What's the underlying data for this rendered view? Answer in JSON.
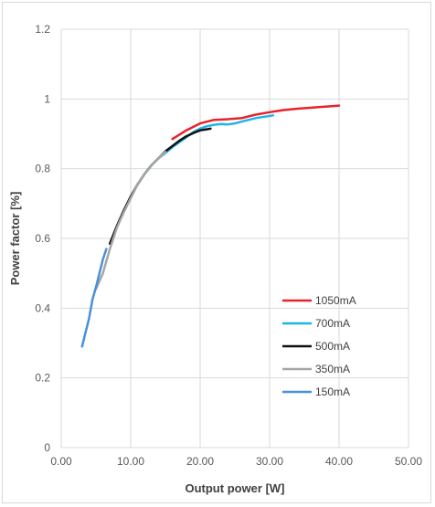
{
  "chart_data": {
    "type": "line",
    "title": "",
    "xlabel": "Output power [W]",
    "ylabel": "Power factor [%]",
    "xlim": [
      0,
      50
    ],
    "ylim": [
      0,
      1.2
    ],
    "x_ticks": [
      0,
      10,
      20,
      30,
      40,
      50
    ],
    "x_tick_labels": [
      "0.00",
      "10.00",
      "20.00",
      "30.00",
      "40.00",
      "50.00"
    ],
    "y_ticks": [
      0,
      0.2,
      0.4,
      0.6,
      0.8,
      1,
      1.2
    ],
    "y_tick_labels": [
      "0",
      "0.2",
      "0.4",
      "0.6",
      "0.8",
      "1",
      "1.2"
    ],
    "grid": true,
    "legend_position": "right-inside",
    "series": [
      {
        "name": "1050mA",
        "color": "#e8222a",
        "x": [
          16,
          18,
          20,
          22,
          24,
          26,
          28,
          30,
          32,
          34,
          36,
          38,
          40
        ],
        "y": [
          0.885,
          0.91,
          0.93,
          0.94,
          0.942,
          0.945,
          0.955,
          0.962,
          0.968,
          0.972,
          0.975,
          0.978,
          0.981
        ]
      },
      {
        "name": "700mA",
        "color": "#1eb4e8",
        "x": [
          11,
          12,
          13,
          14,
          15,
          16,
          17,
          18,
          19,
          20,
          21,
          22,
          23,
          24,
          25,
          26,
          28,
          30.5
        ],
        "y": [
          0.755,
          0.785,
          0.81,
          0.83,
          0.845,
          0.862,
          0.876,
          0.89,
          0.905,
          0.915,
          0.922,
          0.926,
          0.928,
          0.927,
          0.93,
          0.935,
          0.945,
          0.953
        ]
      },
      {
        "name": "500mA",
        "color": "#111111",
        "x": [
          7,
          8,
          9,
          10,
          11,
          12,
          13,
          14,
          15,
          16,
          17,
          18,
          19,
          20,
          21,
          21.5
        ],
        "y": [
          0.585,
          0.635,
          0.68,
          0.72,
          0.755,
          0.785,
          0.81,
          0.83,
          0.85,
          0.865,
          0.88,
          0.893,
          0.902,
          0.91,
          0.913,
          0.915
        ]
      },
      {
        "name": "350mA",
        "color": "#a6a6a6",
        "x": [
          5,
          6,
          7,
          8,
          9,
          10,
          11,
          12,
          13,
          14,
          15
        ],
        "y": [
          0.455,
          0.5,
          0.57,
          0.63,
          0.675,
          0.715,
          0.755,
          0.785,
          0.81,
          0.83,
          0.848
        ]
      },
      {
        "name": "150mA",
        "color": "#4a90d9",
        "x": [
          3,
          3.5,
          4,
          4.5,
          5,
          5.5,
          6,
          6.5
        ],
        "y": [
          0.29,
          0.33,
          0.37,
          0.425,
          0.46,
          0.5,
          0.54,
          0.57
        ]
      }
    ]
  }
}
